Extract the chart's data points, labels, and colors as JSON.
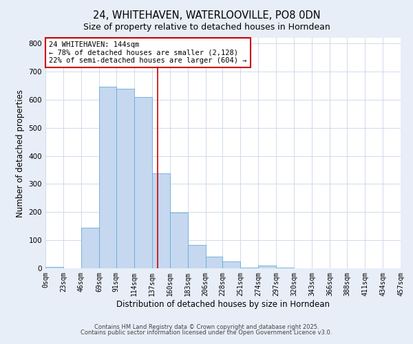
{
  "title": "24, WHITEHAVEN, WATERLOOVILLE, PO8 0DN",
  "subtitle": "Size of property relative to detached houses in Horndean",
  "xlabel": "Distribution of detached houses by size in Horndean",
  "ylabel": "Number of detached properties",
  "bar_edges": [
    0,
    23,
    46,
    69,
    91,
    114,
    137,
    160,
    183,
    206,
    228,
    251,
    274,
    297,
    320,
    343,
    366,
    388,
    411,
    434,
    457
  ],
  "bar_heights": [
    5,
    0,
    145,
    645,
    640,
    610,
    338,
    198,
    83,
    42,
    25,
    3,
    10,
    2,
    0,
    0,
    0,
    0,
    0,
    0
  ],
  "tick_labels": [
    "0sqm",
    "23sqm",
    "46sqm",
    "69sqm",
    "91sqm",
    "114sqm",
    "137sqm",
    "160sqm",
    "183sqm",
    "206sqm",
    "228sqm",
    "251sqm",
    "274sqm",
    "297sqm",
    "320sqm",
    "343sqm",
    "366sqm",
    "388sqm",
    "411sqm",
    "434sqm",
    "457sqm"
  ],
  "bar_color": "#c5d8f0",
  "bar_edgecolor": "#6aaad4",
  "vline_x": 144,
  "vline_color": "#cc0000",
  "annotation_title": "24 WHITEHAVEN: 144sqm",
  "annotation_line1": "← 78% of detached houses are smaller (2,128)",
  "annotation_line2": "22% of semi-detached houses are larger (604) →",
  "annotation_edgecolor": "#cc0000",
  "ylim": [
    0,
    820
  ],
  "yticks": [
    0,
    100,
    200,
    300,
    400,
    500,
    600,
    700,
    800
  ],
  "footnote1": "Contains HM Land Registry data © Crown copyright and database right 2025.",
  "footnote2": "Contains public sector information licensed under the Open Government Licence v3.0.",
  "background_color": "#e8eef8",
  "plot_background": "#ffffff",
  "grid_color": "#c8d4e8",
  "title_fontsize": 10.5,
  "subtitle_fontsize": 9,
  "label_fontsize": 8.5,
  "tick_fontsize": 7,
  "annot_fontsize": 7.5,
  "footnote_fontsize": 6
}
